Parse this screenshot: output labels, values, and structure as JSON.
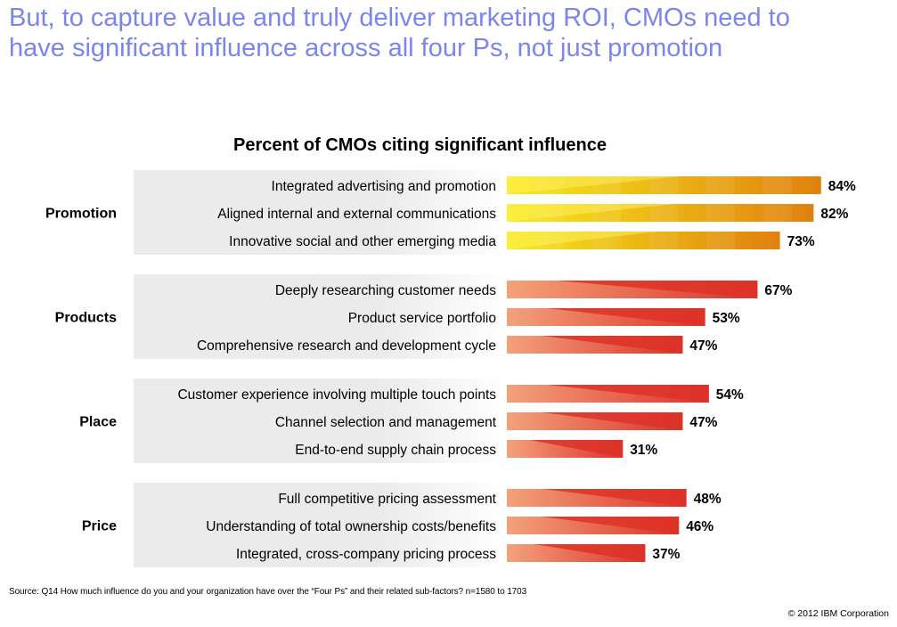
{
  "page": {
    "headline": "But, to capture value and truly deliver marketing ROI, CMOs need to\nhave significant influence across all four Ps, not just promotion",
    "footnote": "Source: Q14 How much influence do you and your organization have over the “Four Ps” and their related sub-factors? n=1580 to 1703",
    "copyright": "© 2012 IBM Corporation"
  },
  "chart_data": {
    "type": "bar",
    "orientation": "horizontal",
    "title": "Percent of CMOs citing significant influence",
    "value_suffix": "%",
    "groups": [
      {
        "name": "Promotion",
        "style": "yellow-orange",
        "items": [
          {
            "label": "Integrated advertising and promotion",
            "value": 84
          },
          {
            "label": "Aligned internal and external communications",
            "value": 82
          },
          {
            "label": "Innovative social and other emerging media",
            "value": 73
          }
        ]
      },
      {
        "name": "Products",
        "style": "red",
        "items": [
          {
            "label": "Deeply researching customer needs",
            "value": 67
          },
          {
            "label": "Product service portfolio",
            "value": 53
          },
          {
            "label": "Comprehensive research and development cycle",
            "value": 47
          }
        ]
      },
      {
        "name": "Place",
        "style": "red",
        "items": [
          {
            "label": "Customer experience involving multiple touch points",
            "value": 54
          },
          {
            "label": "Channel selection and management",
            "value": 47
          },
          {
            "label": "End-to-end supply chain process",
            "value": 31
          }
        ]
      },
      {
        "name": "Price",
        "style": "red",
        "items": [
          {
            "label": "Full competitive pricing assessment",
            "value": 48
          },
          {
            "label": "Understanding of total ownership costs/benefits",
            "value": 46
          },
          {
            "label": "Integrated, cross-company pricing process",
            "value": 37
          }
        ]
      }
    ],
    "colors": {
      "yellow_start": "#f7ea1c",
      "yellow_end": "#e0800f",
      "red_start": "#f3a27c",
      "red_end": "#dd3228",
      "group_bg": "#ebebeb"
    }
  }
}
